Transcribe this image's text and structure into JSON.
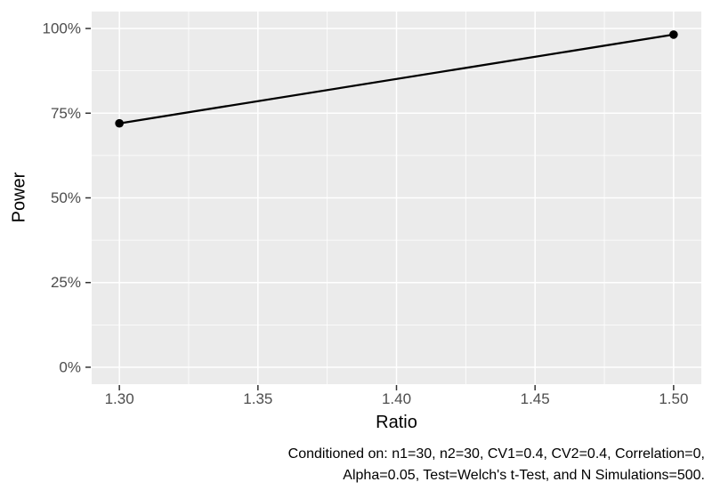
{
  "figure": {
    "xlabel": "Ratio",
    "ylabel": "Power",
    "caption": {
      "line1": "Conditioned on: n1=30, n2=30, CV1=0.4, CV2=0.4, Correlation=0,",
      "line2": "Alpha=0.05, Test=Welch's t-Test, and N Simulations=500."
    }
  },
  "chart_data": {
    "type": "line",
    "title": "",
    "xlabel": "Ratio",
    "ylabel": "Power",
    "series": [
      {
        "name": "Power",
        "points": [
          {
            "x": 1.3,
            "y": 72.0
          },
          {
            "x": 1.5,
            "y": 98.2
          }
        ]
      }
    ],
    "y_unit": "percent",
    "x_ticks": [
      1.3,
      1.35,
      1.4,
      1.45,
      1.5
    ],
    "x_tick_labels": [
      "1.30",
      "1.35",
      "1.40",
      "1.45",
      "1.50"
    ],
    "y_ticks": [
      0,
      25,
      50,
      75,
      100
    ],
    "y_tick_labels": [
      "0%",
      "25%",
      "50%",
      "75%",
      "100%"
    ],
    "xlim": [
      1.29,
      1.51
    ],
    "ylim": [
      -5,
      105
    ],
    "grid": "major-and-minor",
    "legend": "none",
    "caption": "Conditioned on: n1=30, n2=30, CV1=0.4, CV2=0.4, Correlation=0, Alpha=0.05, Test=Welch's t-Test, and N Simulations=500.",
    "conditions": {
      "n1": 30,
      "n2": 30,
      "CV1": 0.4,
      "CV2": 0.4,
      "Correlation": 0,
      "Alpha": 0.05,
      "Test": "Welch's t-Test",
      "N Simulations": 500
    },
    "colors": {
      "line": "#000000",
      "point": "#000000",
      "panel_bg": "#EBEBEB",
      "grid": "#FFFFFF",
      "tick_label": "#4D4D4D",
      "tick_mark": "#333333",
      "axis_title": "#000000",
      "caption_text": "#000000",
      "background": "#FFFFFF"
    }
  }
}
